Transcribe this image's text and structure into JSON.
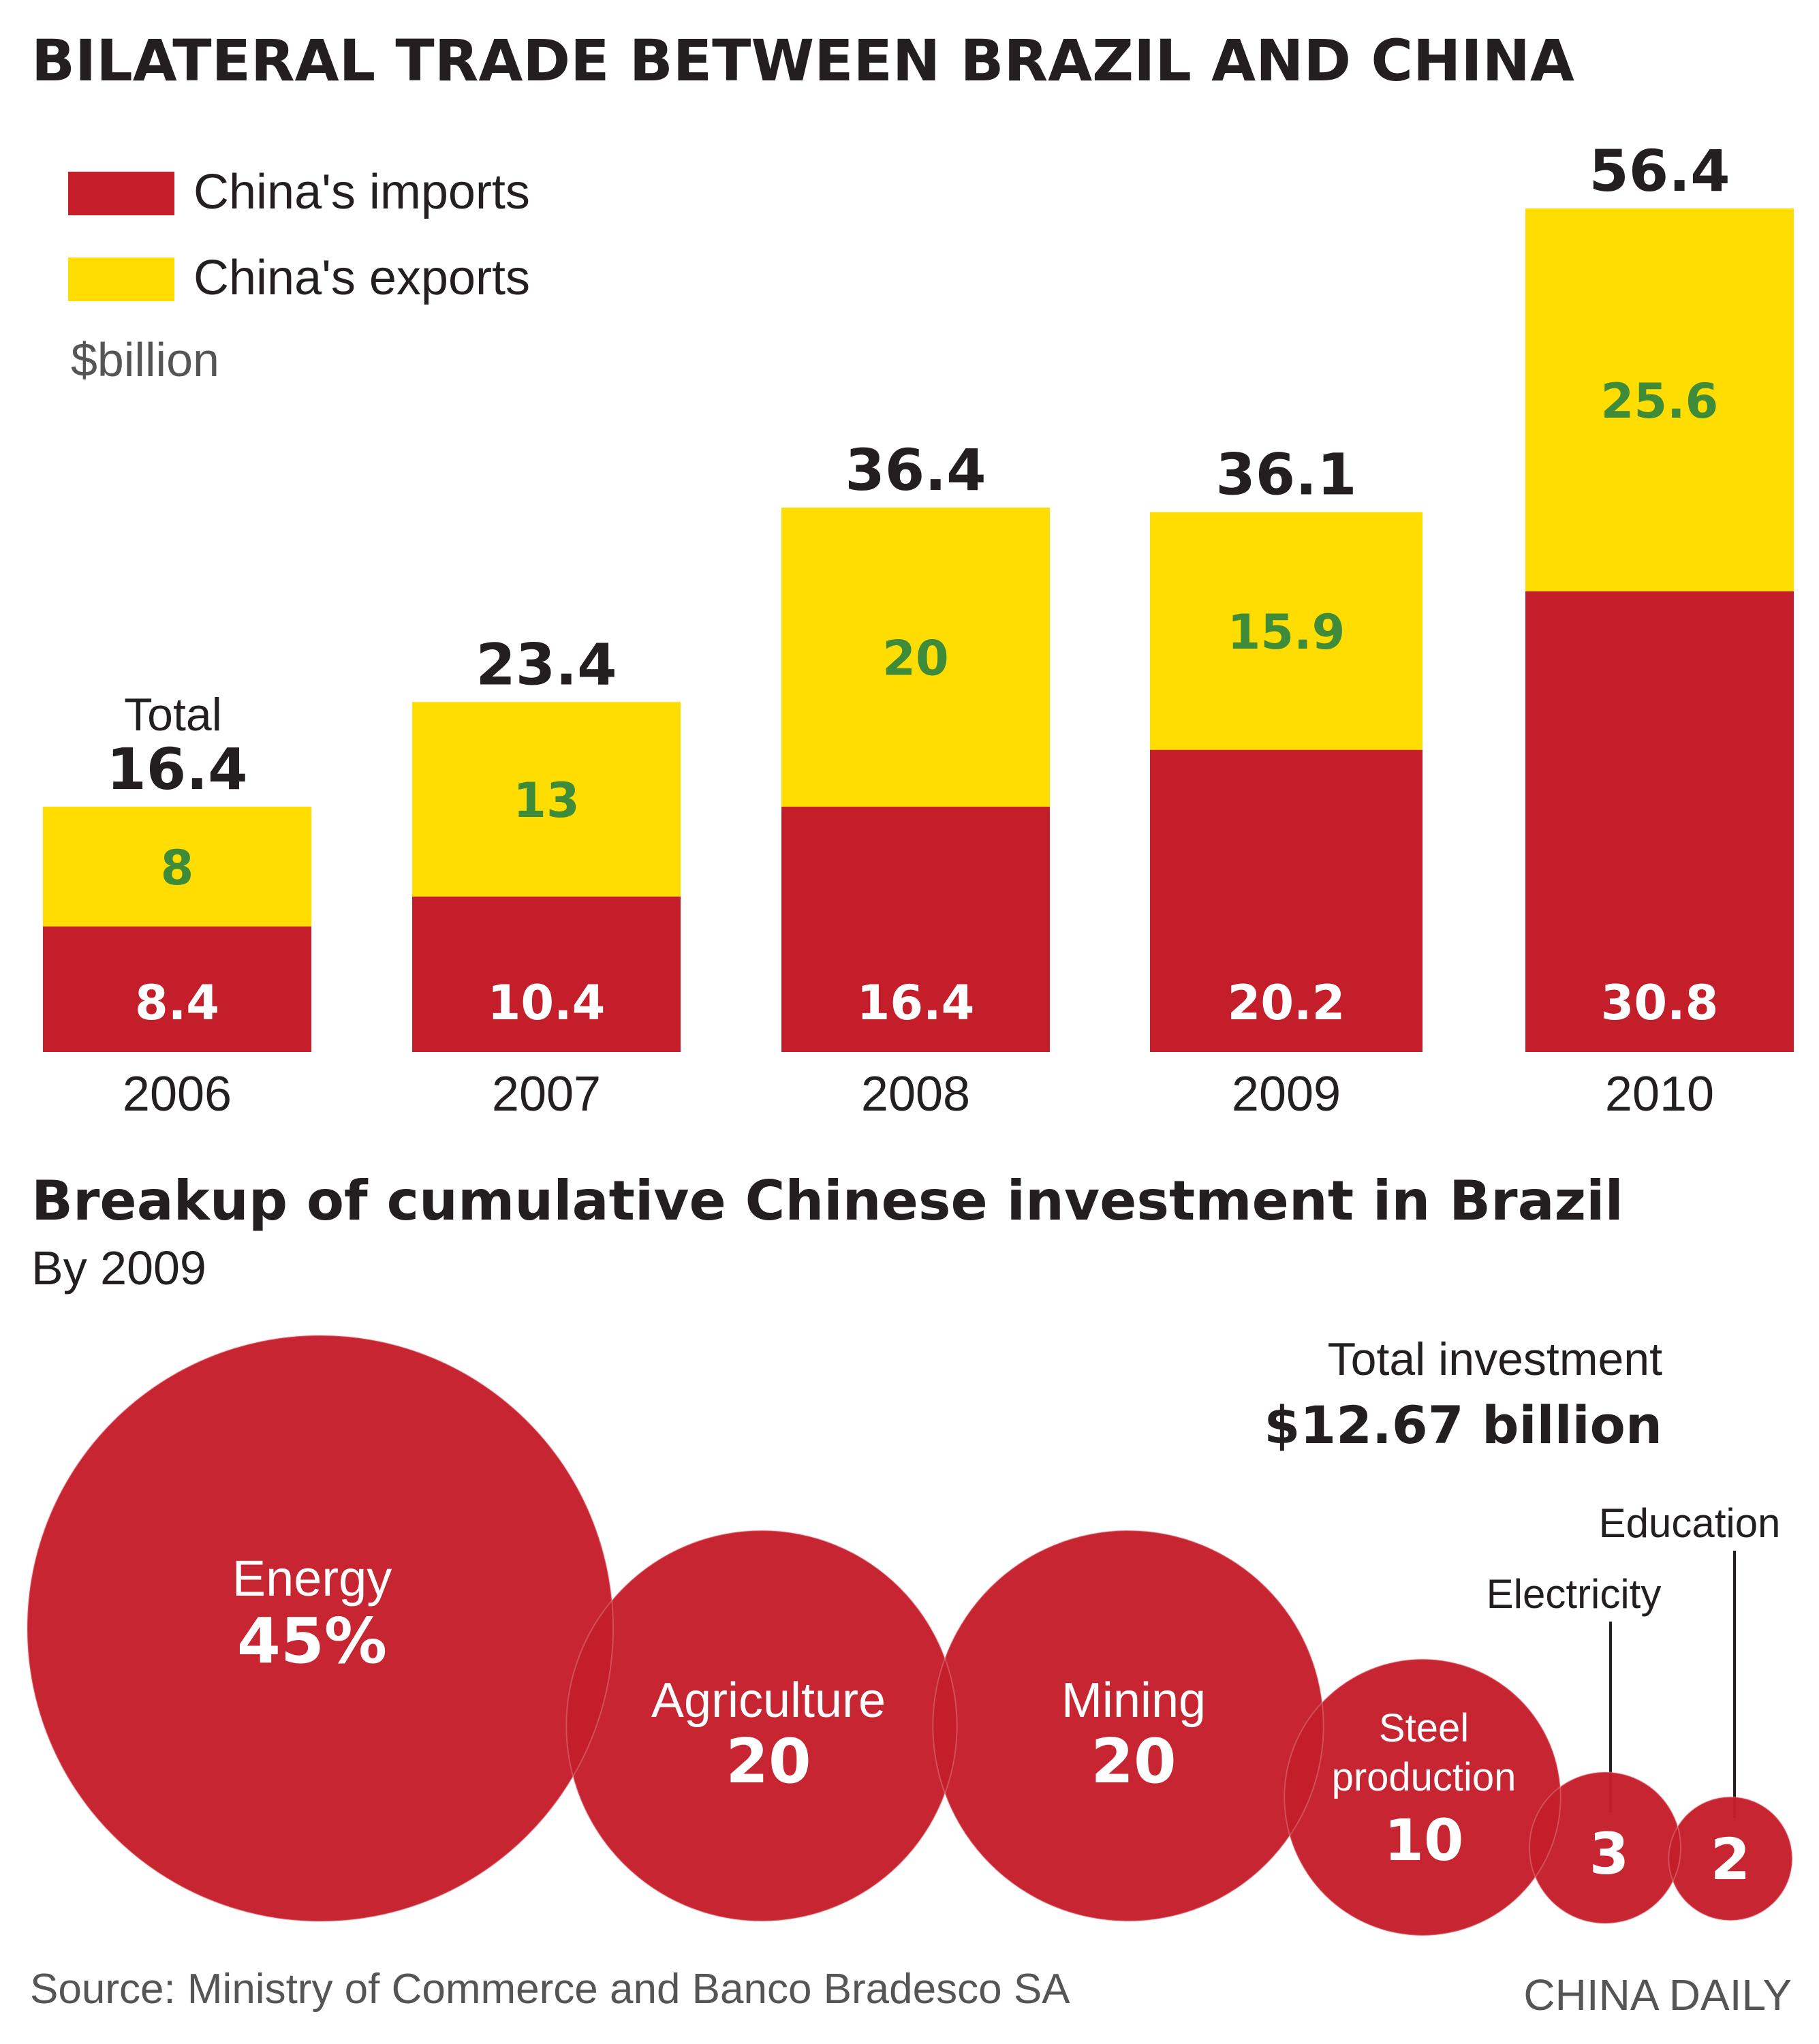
{
  "title": "BILATERAL TRADE BETWEEN BRAZIL AND CHINA",
  "legend": {
    "imports_label": "China's imports",
    "exports_label": "China's exports",
    "unit": "$billion"
  },
  "total_caption": "Total",
  "colors": {
    "imports": "#C41E2A",
    "exports": "#FFDD00",
    "export_value_text": "#3E8B3A",
    "bubble": "#C41E2A",
    "text": "#231F20",
    "muted": "#555555"
  },
  "chart_data": [
    {
      "type": "bar",
      "stacked": true,
      "title": "BILATERAL TRADE BETWEEN BRAZIL AND CHINA",
      "unit": "$billion",
      "categories": [
        "2006",
        "2007",
        "2008",
        "2009",
        "2010"
      ],
      "series": [
        {
          "name": "China's imports",
          "values": [
            8.4,
            10.4,
            16.4,
            20.2,
            30.8
          ]
        },
        {
          "name": "China's exports",
          "values": [
            8,
            13,
            20,
            15.9,
            25.6
          ]
        }
      ],
      "totals": [
        "16.4",
        "23.4",
        "36.4",
        "36.1",
        "56.4"
      ],
      "ylim": [
        0,
        56.4
      ],
      "legend_position": "top-left",
      "grid": false
    },
    {
      "type": "bubble",
      "title": "Breakup of cumulative Chinese investment in Brazil",
      "subtitle": "By 2009",
      "total_label": "Total investment",
      "total_value": "$12.67 billion",
      "sectors": [
        {
          "label": "Energy",
          "value": 45,
          "display": "45%"
        },
        {
          "label": "Agriculture",
          "value": 20,
          "display": "20"
        },
        {
          "label": "Mining",
          "value": 20,
          "display": "20"
        },
        {
          "label": "Steel production",
          "value": 10,
          "display": "10"
        },
        {
          "label": "Electricity",
          "value": 3,
          "display": "3"
        },
        {
          "label": "Education",
          "value": 2,
          "display": "2"
        }
      ]
    }
  ],
  "footer": {
    "source": "Source: Ministry of Commerce and Banco Bradesco SA",
    "credit": "CHINA DAILY"
  }
}
